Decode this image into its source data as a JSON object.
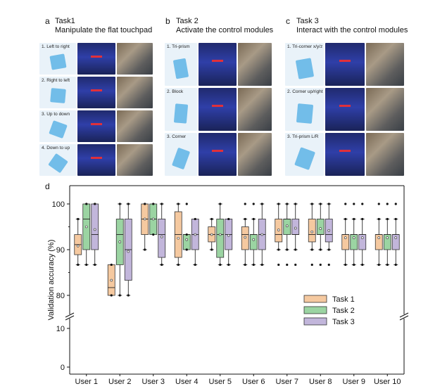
{
  "panels": {
    "a": {
      "letter": "a",
      "title": "Task1",
      "subtitle": "Manipulate the flat touchpad",
      "steps": [
        "1. Left to right",
        "2. Right to left",
        "3. Up to down",
        "4. Down to up"
      ]
    },
    "b": {
      "letter": "b",
      "title": "Task 2",
      "subtitle": "Activate the control modules",
      "steps": [
        "1. Tri-prism",
        "2. Block",
        "3. Corner"
      ]
    },
    "c": {
      "letter": "c",
      "title": "Task 3",
      "subtitle": "Interact with the control modules",
      "steps": [
        "1. Tri-corner x/y/z",
        "2. Corner up/right",
        "3. Tri-prism L/R"
      ]
    },
    "d": {
      "letter": "d"
    }
  },
  "colors": {
    "task1": "#f5c9a0",
    "task2": "#9bd4a2",
    "task3": "#c2b6db",
    "sim_blue": "#2f3fa8",
    "arrow_red": "#e0303a"
  },
  "chart_data": {
    "type": "box",
    "ylabel": "Validation accuracy (%)",
    "categories": [
      "User 1",
      "User 2",
      "User 3",
      "User 4",
      "User 5",
      "User 6",
      "User 7",
      "User 8",
      "User 9",
      "User 10"
    ],
    "y_ticks": [
      0,
      10,
      80,
      90,
      100
    ],
    "y_break": [
      10,
      78
    ],
    "legend_position": "right",
    "series": [
      {
        "name": "Task 1",
        "color": "#f5c9a0",
        "boxes": [
          {
            "min": 86.7,
            "q1": 88.9,
            "median": 91.1,
            "q3": 93.3,
            "max": 96.7,
            "mean": 90.8,
            "outliers": []
          },
          {
            "min": 80,
            "q1": 80,
            "median": 81.7,
            "q3": 86.7,
            "max": 86.7,
            "mean": 83.3,
            "outliers": []
          },
          {
            "min": 90,
            "q1": 93.3,
            "median": 96.7,
            "q3": 100,
            "max": 100,
            "mean": 96.7,
            "outliers": []
          },
          {
            "min": 86.7,
            "q1": 88.3,
            "median": 93.3,
            "q3": 98.3,
            "max": 100,
            "mean": 92.5,
            "outliers": []
          },
          {
            "min": 90,
            "q1": 91.7,
            "median": 93.3,
            "q3": 95,
            "max": 96.7,
            "mean": 93.3,
            "outliers": []
          },
          {
            "min": 86.7,
            "q1": 90,
            "median": 93.3,
            "q3": 95,
            "max": 96.7,
            "mean": 92.7,
            "outliers": [
              100
            ]
          },
          {
            "min": 90,
            "q1": 91.7,
            "median": 93.3,
            "q3": 96.7,
            "max": 100,
            "mean": 94.3,
            "outliers": [
              86.7
            ]
          },
          {
            "min": 90,
            "q1": 91.7,
            "median": 93.3,
            "q3": 96.7,
            "max": 100,
            "mean": 93.9,
            "outliers": [
              86.7
            ]
          },
          {
            "min": 86.7,
            "q1": 90,
            "median": 93.3,
            "q3": 93.3,
            "max": 96.7,
            "mean": 92.6,
            "outliers": [
              100
            ]
          },
          {
            "min": 86.7,
            "q1": 90,
            "median": 93.3,
            "q3": 93.3,
            "max": 96.7,
            "mean": 92.6,
            "outliers": [
              100
            ]
          }
        ]
      },
      {
        "name": "Task 2",
        "color": "#9bd4a2",
        "boxes": [
          {
            "min": 86.7,
            "q1": 90,
            "median": 96.7,
            "q3": 100,
            "max": 100,
            "mean": 95,
            "outliers": []
          },
          {
            "min": 80,
            "q1": 86.7,
            "median": 93.3,
            "q3": 96.7,
            "max": 100,
            "mean": 91.7,
            "outliers": []
          },
          {
            "min": 93.3,
            "q1": 93.3,
            "median": 96.7,
            "q3": 100,
            "max": 100,
            "mean": 96.7,
            "outliers": []
          },
          {
            "min": 90,
            "q1": 90,
            "median": 93.3,
            "q3": 93.3,
            "max": 93.3,
            "mean": 92.2,
            "outliers": [
              100
            ]
          },
          {
            "min": 86.7,
            "q1": 88.3,
            "median": 93.3,
            "q3": 96.7,
            "max": 100,
            "mean": 93.3,
            "outliers": []
          },
          {
            "min": 86.7,
            "q1": 90,
            "median": 93.3,
            "q3": 93.3,
            "max": 96.7,
            "mean": 92.2,
            "outliers": [
              100
            ]
          },
          {
            "min": 90,
            "q1": 93.3,
            "median": 96.7,
            "q3": 96.7,
            "max": 100,
            "mean": 95.2,
            "outliers": [
              86.7
            ]
          },
          {
            "min": 90,
            "q1": 93.3,
            "median": 93.3,
            "q3": 96.7,
            "max": 100,
            "mean": 94.6,
            "outliers": [
              86.7
            ]
          },
          {
            "min": 86.7,
            "q1": 90,
            "median": 93.3,
            "q3": 93.3,
            "max": 96.7,
            "mean": 92.6,
            "outliers": [
              100
            ]
          },
          {
            "min": 86.7,
            "q1": 90,
            "median": 93.3,
            "q3": 93.3,
            "max": 96.7,
            "mean": 92.6,
            "outliers": [
              100
            ]
          }
        ]
      },
      {
        "name": "Task 3",
        "color": "#c2b6db",
        "boxes": [
          {
            "min": 86.7,
            "q1": 90,
            "median": 93.3,
            "q3": 100,
            "max": 100,
            "mean": 94.4,
            "outliers": []
          },
          {
            "min": 80,
            "q1": 83.3,
            "median": 90,
            "q3": 96.7,
            "max": 100,
            "mean": 89.6,
            "outliers": []
          },
          {
            "min": 86.7,
            "q1": 88.3,
            "median": 93.3,
            "q3": 96.7,
            "max": 100,
            "mean": 92.8,
            "outliers": []
          },
          {
            "min": 86.7,
            "q1": 90,
            "median": 93.3,
            "q3": 96.7,
            "max": 96.7,
            "mean": 93.3,
            "outliers": []
          },
          {
            "min": 86.7,
            "q1": 90,
            "median": 93.3,
            "q3": 96.7,
            "max": 96.7,
            "mean": 93.1,
            "outliers": []
          },
          {
            "min": 86.7,
            "q1": 90,
            "median": 93.3,
            "q3": 96.7,
            "max": 100,
            "mean": 93.3,
            "outliers": []
          },
          {
            "min": 90,
            "q1": 93.3,
            "median": 93.3,
            "q3": 96.7,
            "max": 100,
            "mean": 94.7,
            "outliers": [
              86.7
            ]
          },
          {
            "min": 90,
            "q1": 91.7,
            "median": 93.3,
            "q3": 96.7,
            "max": 100,
            "mean": 94.2,
            "outliers": [
              86.7
            ]
          },
          {
            "min": 86.7,
            "q1": 90,
            "median": 93.3,
            "q3": 93.3,
            "max": 96.7,
            "mean": 92.6,
            "outliers": [
              100
            ]
          },
          {
            "min": 86.7,
            "q1": 90,
            "median": 93.3,
            "q3": 93.3,
            "max": 96.7,
            "mean": 92.6,
            "outliers": [
              100
            ]
          }
        ]
      }
    ]
  }
}
